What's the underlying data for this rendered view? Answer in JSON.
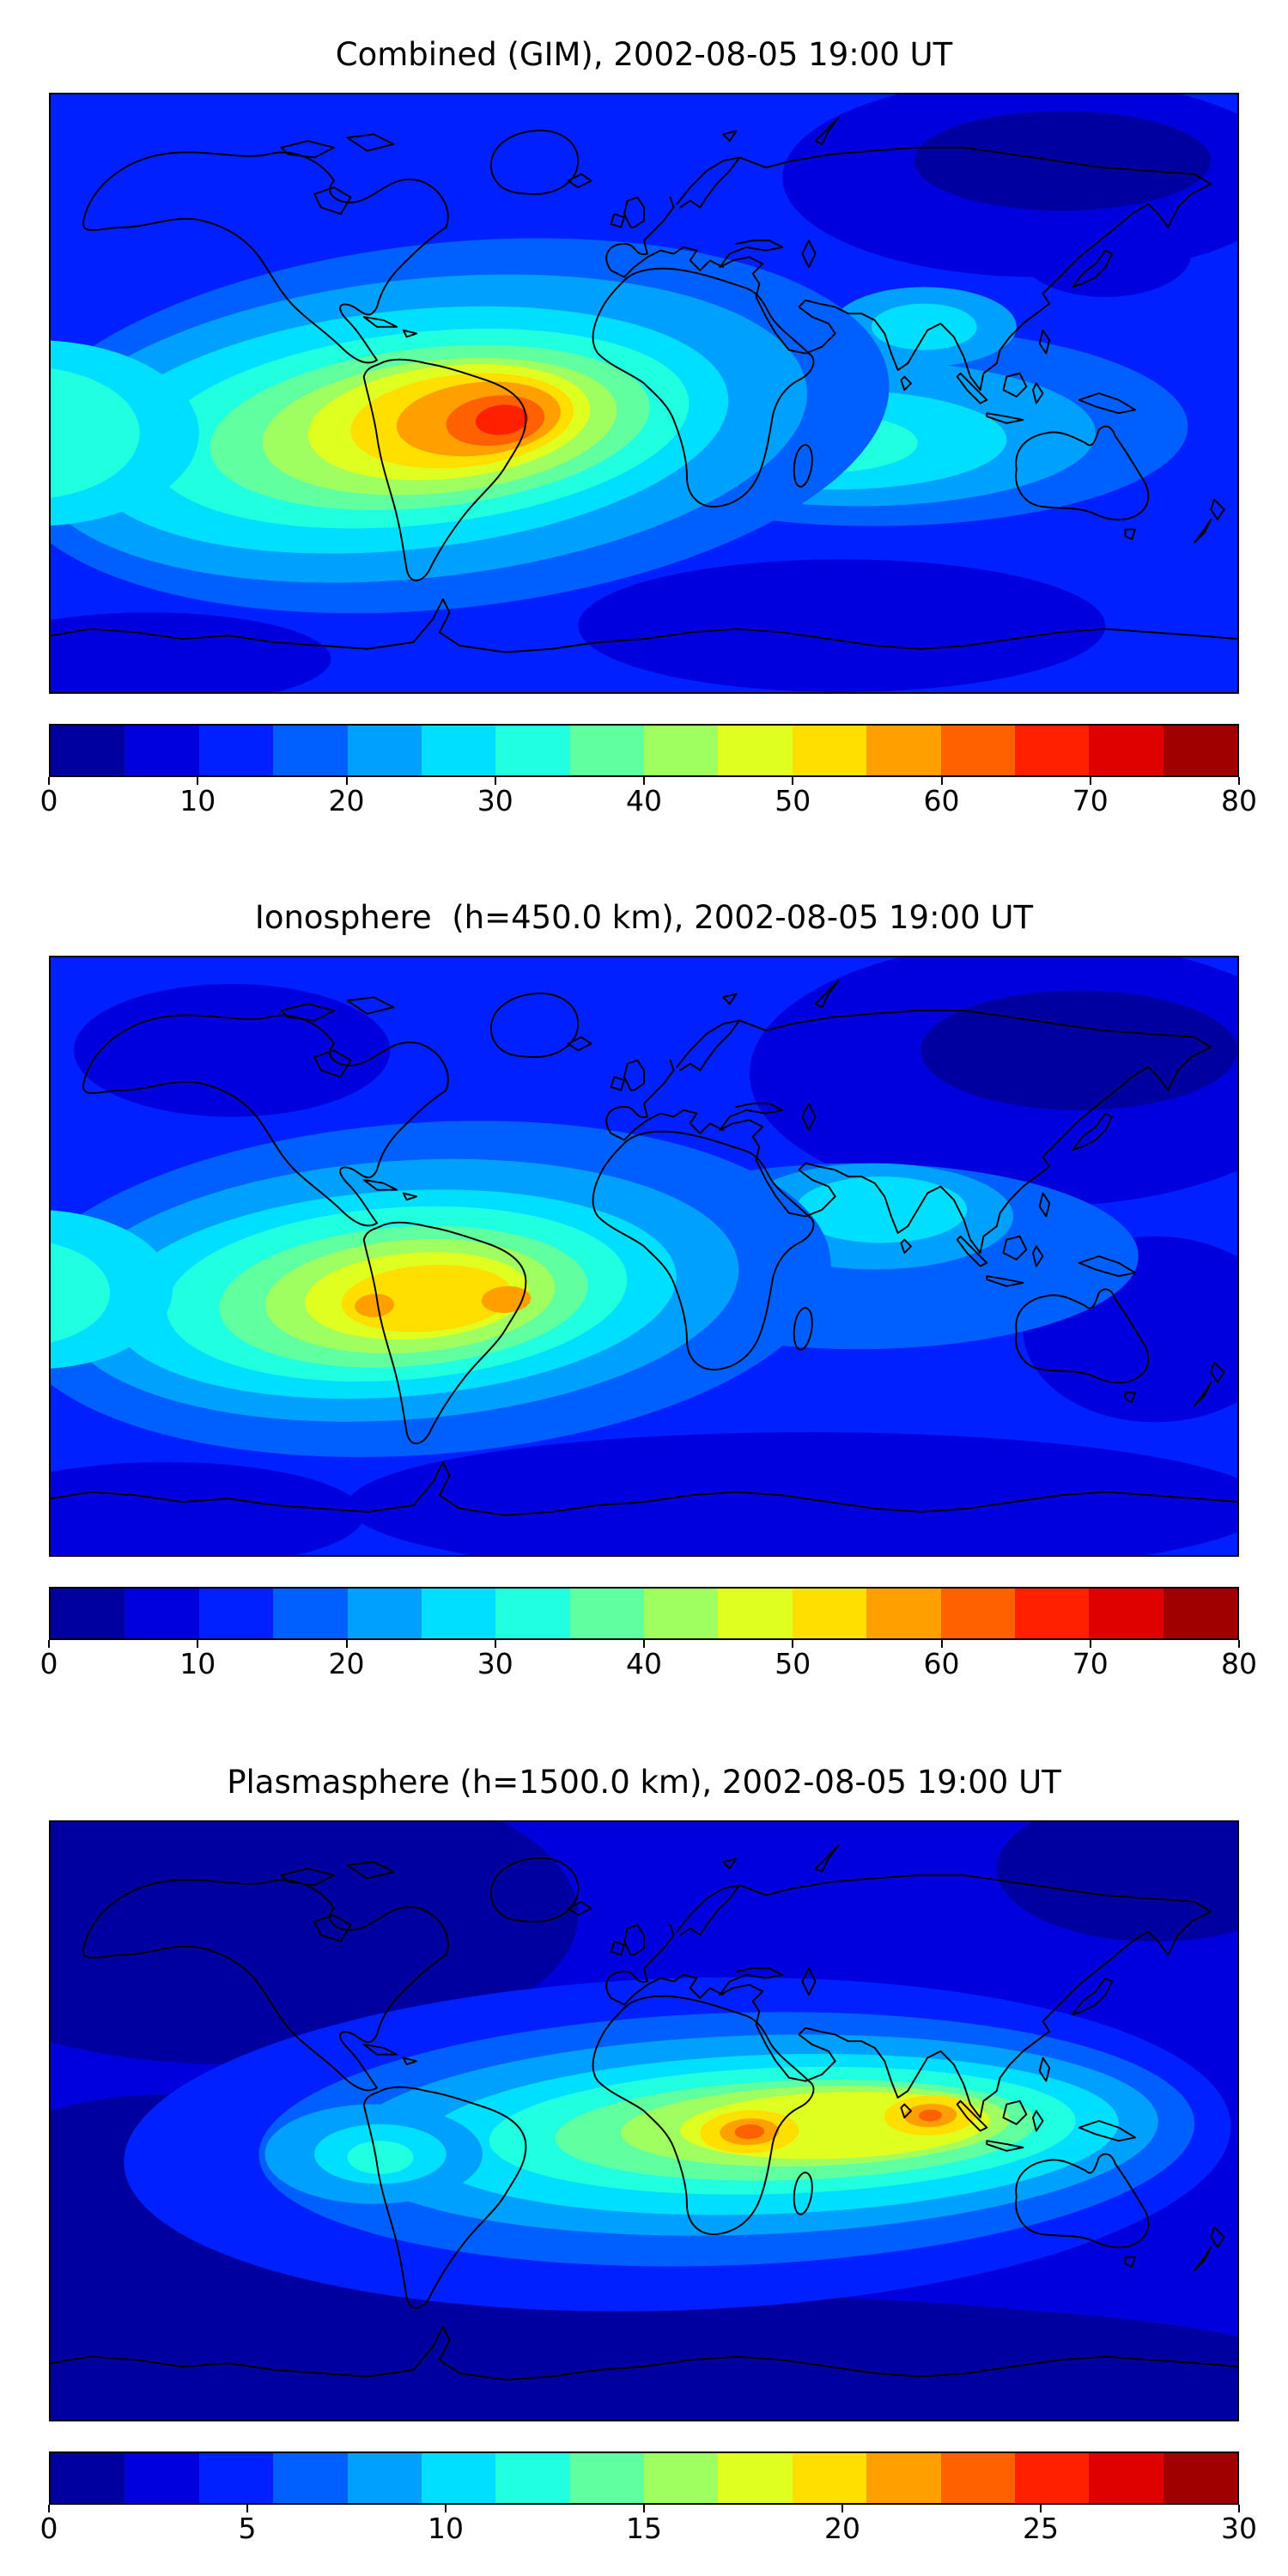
{
  "palette": {
    "jet_bands": [
      "#0000a0",
      "#0000df",
      "#0020ff",
      "#0060ff",
      "#00a0ff",
      "#00dfff",
      "#20ffdf",
      "#60ffa0",
      "#a0ff60",
      "#dfff20",
      "#ffdf00",
      "#ffa000",
      "#ff6000",
      "#ff2000",
      "#df0000",
      "#a00000"
    ],
    "coastline": "#000000",
    "page_background": "#ffffff"
  },
  "panels": [
    {
      "id": "combined",
      "title": "Combined (GIM), 2002-08-05 19:00 UT",
      "colorbar": {
        "min": 0,
        "max": 80,
        "ticks": [
          "0",
          "10",
          "20",
          "30",
          "40",
          "50",
          "60",
          "70",
          "80"
        ]
      }
    },
    {
      "id": "ionosphere",
      "title": "Ionosphere  (h=450.0 km), 2002-08-05 19:00 UT",
      "colorbar": {
        "min": 0,
        "max": 80,
        "ticks": [
          "0",
          "10",
          "20",
          "30",
          "40",
          "50",
          "60",
          "70",
          "80"
        ]
      }
    },
    {
      "id": "plasmasphere",
      "title": "Plasmasphere (h=1500.0 km), 2002-08-05 19:00 UT",
      "colorbar": {
        "min": 0,
        "max": 30,
        "ticks": [
          "0",
          "5",
          "10",
          "15",
          "20",
          "25",
          "30"
        ]
      }
    }
  ],
  "chart_data": [
    {
      "type": "heatmap",
      "title": "Combined (GIM), 2002-08-05 19:00 UT",
      "projection": "equirectangular world map with coastlines",
      "lon_range": [
        -180,
        180
      ],
      "lat_range": [
        -90,
        90
      ],
      "value_range": [
        0,
        80
      ],
      "colorbar_ticks": [
        0,
        10,
        20,
        30,
        40,
        50,
        60,
        70,
        80
      ],
      "colormap": "jet, 16 discrete contour bands",
      "legend_position": "horizontal colorbar below map",
      "features": [
        {
          "region": "peak over eastern South America / tropical Atlantic (~45W, ~10S)",
          "value": 75
        },
        {
          "region": "broad enhancement over South America and eastern Pacific",
          "value": "40-65"
        },
        {
          "region": "band across South Atlantic, southern Africa and Indian Ocean",
          "value": "25-35"
        },
        {
          "region": "patch over India / South Asia",
          "value": "25-30"
        },
        {
          "region": "mid-ocean background",
          "value": "10-20"
        },
        {
          "region": "minimum over northeast Asia and high southern latitudes",
          "value": "5-10"
        }
      ]
    },
    {
      "type": "heatmap",
      "title": "Ionosphere  (h=450.0 km), 2002-08-05 19:00 UT",
      "projection": "equirectangular world map with coastlines",
      "lon_range": [
        -180,
        180
      ],
      "lat_range": [
        -90,
        90
      ],
      "value_range": [
        0,
        80
      ],
      "colorbar_ticks": [
        0,
        10,
        20,
        30,
        40,
        50,
        60,
        70,
        80
      ],
      "colormap": "jet, 16 discrete contour bands",
      "legend_position": "horizontal colorbar below map",
      "features": [
        {
          "region": "peak over northern/western South America (~80W to 40W, ~12S)",
          "value": "55-60"
        },
        {
          "region": "broad enhancement over South America and eastern Pacific",
          "value": "35-50"
        },
        {
          "region": "secondary enhancement over Middle East / India",
          "value": "25-30"
        },
        {
          "region": "background oceans",
          "value": "10-20"
        },
        {
          "region": "minimum over central and northeast Asia and far southern ocean",
          "value": "5-10"
        }
      ]
    },
    {
      "type": "heatmap",
      "title": "Plasmasphere (h=1500.0 km), 2002-08-05 19:00 UT",
      "projection": "equirectangular world map with coastlines",
      "lon_range": [
        -180,
        180
      ],
      "lat_range": [
        -90,
        90
      ],
      "value_range": [
        0,
        30
      ],
      "colorbar_ticks": [
        0,
        5,
        10,
        15,
        20,
        25,
        30
      ],
      "colormap": "jet, 16 discrete contour bands",
      "legend_position": "horizontal colorbar below map",
      "features": [
        {
          "region": "peak over central/northern Africa (~18E, near equator)",
          "value": "25-27"
        },
        {
          "region": "peak over India / Southeast Asia (~87E, near equator)",
          "value": "24-26"
        },
        {
          "region": "low-latitude band from South America across Africa to Southeast Asia",
          "value": "12-22"
        },
        {
          "region": "background oceans",
          "value": "5-8"
        },
        {
          "region": "minimum at high latitudes (top-left, bottom, polar regions)",
          "value": "2-4"
        }
      ]
    }
  ]
}
